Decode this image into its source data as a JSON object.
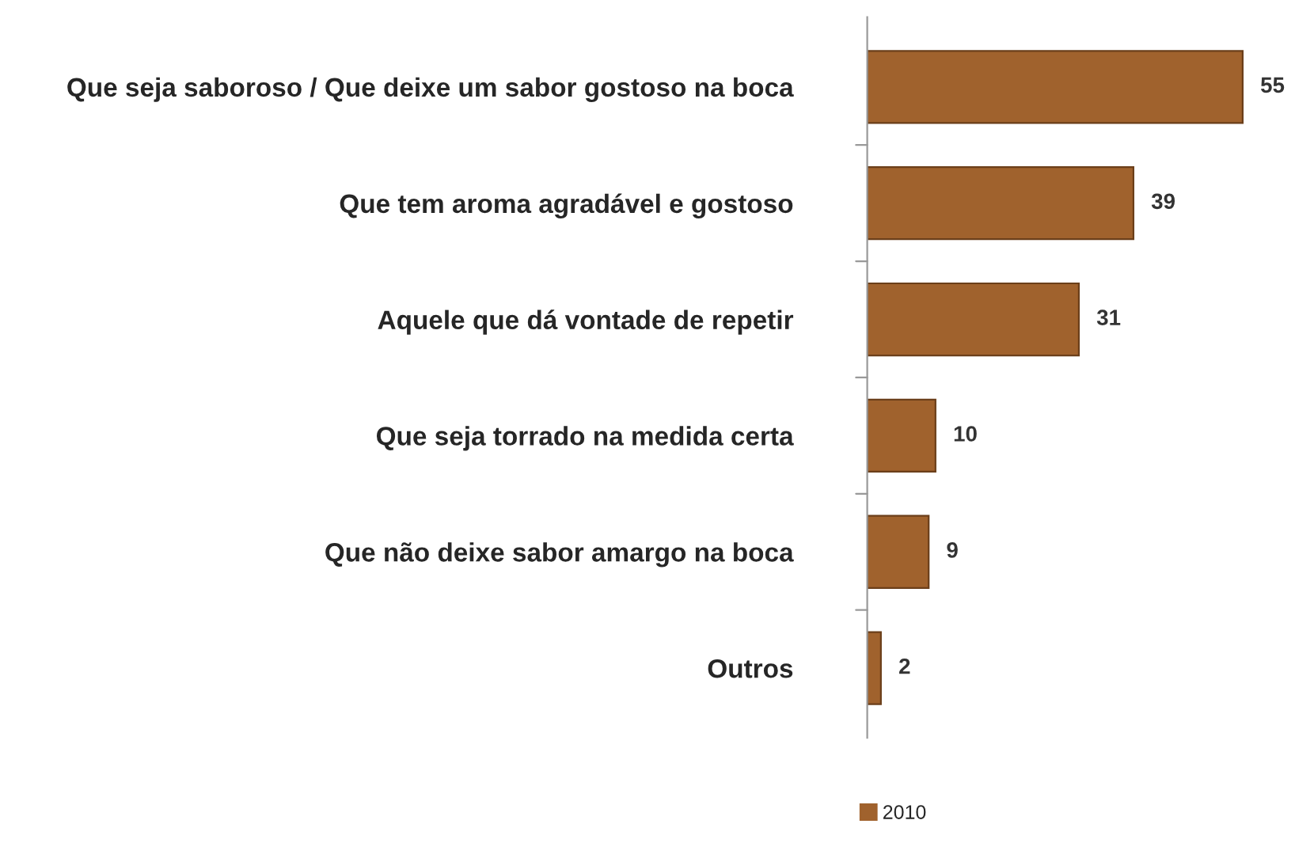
{
  "chart_data": {
    "type": "bar",
    "orientation": "horizontal",
    "categories": [
      "Que seja saboroso / Que deixe um sabor gostoso na boca",
      "Que tem aroma agradável e gostoso",
      "Aquele que dá vontade de repetir",
      "Que seja torrado na medida certa",
      "Que não deixe sabor amargo na boca",
      "Outros"
    ],
    "series": [
      {
        "name": "2010",
        "color": "#a0622d",
        "values": [
          55,
          39,
          31,
          10,
          9,
          2
        ]
      }
    ],
    "data_labels": true,
    "legend": "bottom",
    "grid": false,
    "tick_labels": "y"
  }
}
